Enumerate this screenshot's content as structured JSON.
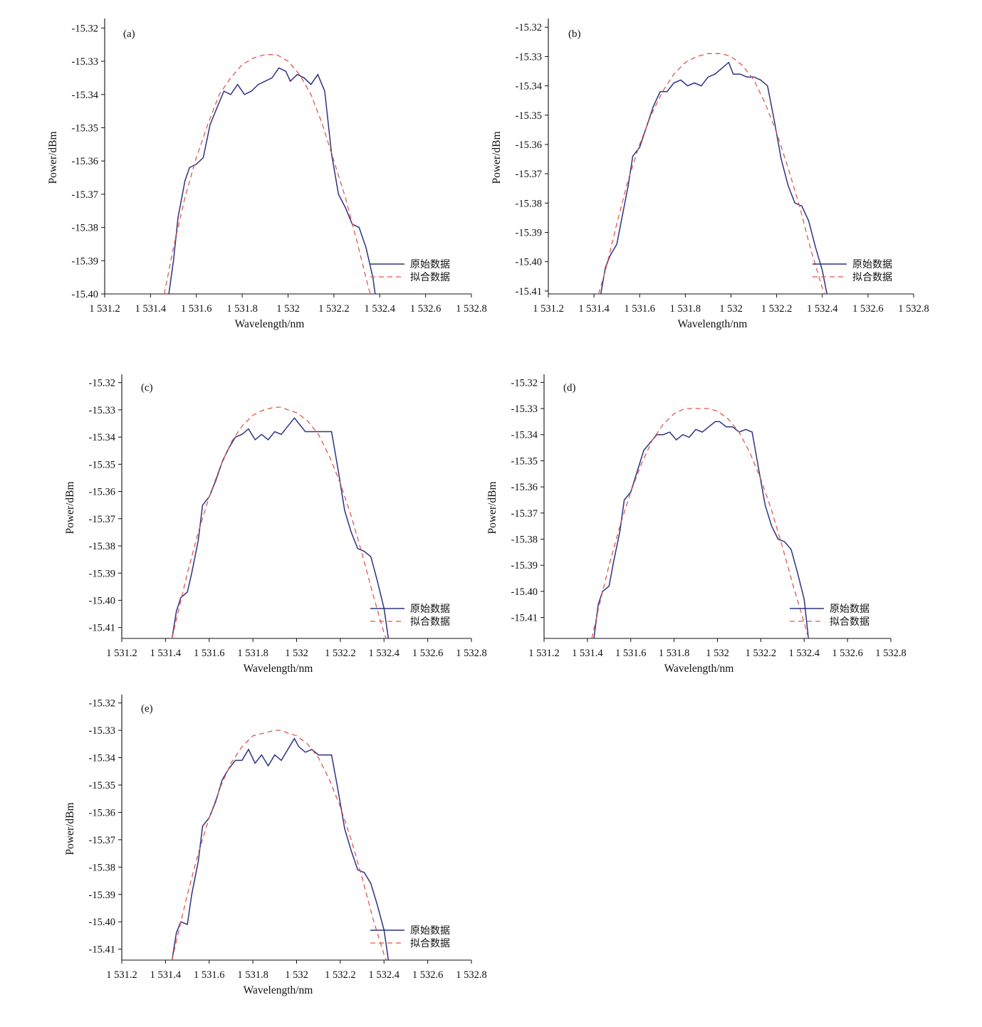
{
  "colors": {
    "raw": "#2d3380",
    "fit": "#e0584e",
    "axis": "#111111"
  },
  "chart_data": [
    {
      "type": "line",
      "panel_label": "(a)",
      "xlabel": "Wavelength/nm",
      "ylabel": "Power/dBm",
      "xlim": [
        1531.2,
        1532.8
      ],
      "ylim": [
        -15.4,
        -15.318
      ],
      "x_ticks": [
        1531.2,
        1531.4,
        1531.6,
        1531.8,
        1532.0,
        1532.2,
        1532.4,
        1532.6,
        1532.8
      ],
      "x_tick_labels": [
        "1 531.2",
        "1 531.4",
        "1 531.6",
        "1 531.8",
        "1 532",
        "1 532.2",
        "1 532.4",
        "1 532.6",
        "1 532.8"
      ],
      "y_ticks": [
        -15.32,
        -15.33,
        -15.34,
        -15.35,
        -15.36,
        -15.37,
        -15.38,
        -15.39,
        -15.4
      ],
      "y_tick_labels": [
        "-15.32",
        "-15.33",
        "-15.34",
        "-15.35",
        "-15.36",
        "-15.37",
        "-15.38",
        "-15.39",
        "-15.40"
      ],
      "legend": [
        "原始数据",
        "拟合数据"
      ],
      "legend_position": "right",
      "series": [
        {
          "name": "原始数据",
          "style": "solid",
          "x": [
            1531.48,
            1531.5,
            1531.52,
            1531.55,
            1531.57,
            1531.6,
            1531.63,
            1531.66,
            1531.69,
            1531.72,
            1531.75,
            1531.78,
            1531.81,
            1531.84,
            1531.87,
            1531.9,
            1531.93,
            1531.96,
            1531.99,
            1532.01,
            1532.04,
            1532.07,
            1532.1,
            1532.13,
            1532.16,
            1532.19,
            1532.22,
            1532.25,
            1532.28,
            1532.31,
            1532.34,
            1532.37,
            1532.38
          ],
          "y": [
            -15.4,
            -15.39,
            -15.377,
            -15.366,
            -15.362,
            -15.361,
            -15.359,
            -15.349,
            -15.344,
            -15.339,
            -15.34,
            -15.337,
            -15.34,
            -15.339,
            -15.337,
            -15.336,
            -15.335,
            -15.332,
            -15.333,
            -15.336,
            -15.334,
            -15.335,
            -15.337,
            -15.334,
            -15.339,
            -15.358,
            -15.37,
            -15.374,
            -15.379,
            -15.38,
            -15.386,
            -15.395,
            -15.4
          ]
        },
        {
          "name": "拟合数据",
          "style": "dashed",
          "x": [
            1531.46,
            1531.5,
            1531.55,
            1531.6,
            1531.65,
            1531.7,
            1531.75,
            1531.8,
            1531.85,
            1531.9,
            1531.93,
            1531.95,
            1532.0,
            1532.05,
            1532.1,
            1532.15,
            1532.2,
            1532.25,
            1532.3,
            1532.35,
            1532.36
          ],
          "y": [
            -15.4,
            -15.386,
            -15.371,
            -15.359,
            -15.349,
            -15.34,
            -15.335,
            -15.331,
            -15.329,
            -15.328,
            -15.328,
            -15.328,
            -15.33,
            -15.334,
            -15.34,
            -15.349,
            -15.36,
            -15.371,
            -15.384,
            -15.398,
            -15.4
          ]
        }
      ]
    },
    {
      "type": "line",
      "panel_label": "(b)",
      "xlabel": "Wavelength/nm",
      "ylabel": "Power/dBm",
      "xlim": [
        1531.2,
        1532.8
      ],
      "ylim": [
        -15.411,
        -15.318
      ],
      "x_ticks": [
        1531.2,
        1531.4,
        1531.6,
        1531.8,
        1532.0,
        1532.2,
        1532.4,
        1532.6,
        1532.8
      ],
      "x_tick_labels": [
        "1 531.2",
        "1 531.4",
        "1 531.6",
        "1 531.8",
        "1 532",
        "1 532.2",
        "1 532.4",
        "1 532.6",
        "1 532.8"
      ],
      "y_ticks": [
        -15.32,
        -15.33,
        -15.34,
        -15.35,
        -15.36,
        -15.37,
        -15.38,
        -15.39,
        -15.4,
        -15.41
      ],
      "y_tick_labels": [
        "-15.32",
        "-15.33",
        "-15.34",
        "-15.35",
        "-15.36",
        "-15.37",
        "-15.38",
        "-15.39",
        "-15.40",
        "-15.41"
      ],
      "legend": [
        "原始数据",
        "拟合数据"
      ],
      "legend_position": "right",
      "series": [
        {
          "name": "原始数据",
          "style": "solid",
          "x": [
            1531.43,
            1531.45,
            1531.47,
            1531.5,
            1531.52,
            1531.55,
            1531.57,
            1531.6,
            1531.63,
            1531.66,
            1531.69,
            1531.72,
            1531.75,
            1531.78,
            1531.81,
            1531.84,
            1531.87,
            1531.9,
            1531.93,
            1531.96,
            1531.99,
            1532.01,
            1532.04,
            1532.07,
            1532.1,
            1532.13,
            1532.16,
            1532.19,
            1532.22,
            1532.25,
            1532.28,
            1532.31,
            1532.34,
            1532.37,
            1532.4,
            1532.42
          ],
          "y": [
            -15.411,
            -15.402,
            -15.398,
            -15.394,
            -15.386,
            -15.374,
            -15.364,
            -15.361,
            -15.354,
            -15.347,
            -15.342,
            -15.342,
            -15.339,
            -15.338,
            -15.34,
            -15.339,
            -15.34,
            -15.337,
            -15.336,
            -15.334,
            -15.332,
            -15.336,
            -15.336,
            -15.337,
            -15.337,
            -15.338,
            -15.34,
            -15.352,
            -15.365,
            -15.374,
            -15.38,
            -15.381,
            -15.386,
            -15.395,
            -15.403,
            -15.411
          ]
        },
        {
          "name": "拟合数据",
          "style": "dashed",
          "x": [
            1531.42,
            1531.45,
            1531.5,
            1531.55,
            1531.6,
            1531.65,
            1531.7,
            1531.75,
            1531.8,
            1531.85,
            1531.9,
            1531.93,
            1531.96,
            1532.0,
            1532.05,
            1532.1,
            1532.15,
            1532.2,
            1532.25,
            1532.3,
            1532.35,
            1532.4,
            1532.41
          ],
          "y": [
            -15.411,
            -15.403,
            -15.387,
            -15.372,
            -15.36,
            -15.35,
            -15.342,
            -15.336,
            -15.332,
            -15.33,
            -15.329,
            -15.329,
            -15.329,
            -15.33,
            -15.333,
            -15.338,
            -15.346,
            -15.356,
            -15.368,
            -15.381,
            -15.396,
            -15.409,
            -15.411
          ]
        }
      ]
    },
    {
      "type": "line",
      "panel_label": "(c)",
      "xlabel": "Wavelength/nm",
      "ylabel": "Power/dBm",
      "xlim": [
        1531.2,
        1532.8
      ],
      "ylim": [
        -15.414,
        -15.318
      ],
      "x_ticks": [
        1531.2,
        1531.4,
        1531.6,
        1531.8,
        1532.0,
        1532.2,
        1532.4,
        1532.6,
        1532.8
      ],
      "x_tick_labels": [
        "1 531.2",
        "1 531.4",
        "1 531.6",
        "1 531.8",
        "1 532",
        "1 532.2",
        "1 532.4",
        "1 532.6",
        "1 532.8"
      ],
      "y_ticks": [
        -15.32,
        -15.33,
        -15.34,
        -15.35,
        -15.36,
        -15.37,
        -15.38,
        -15.39,
        -15.4,
        -15.41
      ],
      "y_tick_labels": [
        "-15.32",
        "-15.33",
        "-15.34",
        "-15.35",
        "-15.36",
        "-15.37",
        "-15.38",
        "-15.39",
        "-15.40",
        "-15.41"
      ],
      "legend": [
        "原始数据",
        "拟合数据"
      ],
      "legend_position": "right",
      "series": [
        {
          "name": "原始数据",
          "style": "solid",
          "x": [
            1531.43,
            1531.45,
            1531.47,
            1531.5,
            1531.52,
            1531.55,
            1531.57,
            1531.6,
            1531.63,
            1531.66,
            1531.69,
            1531.72,
            1531.75,
            1531.78,
            1531.81,
            1531.84,
            1531.87,
            1531.9,
            1531.93,
            1531.96,
            1531.99,
            1532.01,
            1532.04,
            1532.07,
            1532.1,
            1532.13,
            1532.16,
            1532.19,
            1532.22,
            1532.25,
            1532.28,
            1532.31,
            1532.34,
            1532.37,
            1532.4,
            1532.42
          ],
          "y": [
            -15.414,
            -15.404,
            -15.399,
            -15.397,
            -15.39,
            -15.378,
            -15.365,
            -15.362,
            -15.356,
            -15.349,
            -15.344,
            -15.34,
            -15.339,
            -15.337,
            -15.341,
            -15.339,
            -15.341,
            -15.338,
            -15.339,
            -15.336,
            -15.333,
            -15.335,
            -15.338,
            -15.338,
            -15.338,
            -15.338,
            -15.338,
            -15.352,
            -15.367,
            -15.375,
            -15.381,
            -15.382,
            -15.384,
            -15.393,
            -15.403,
            -15.414
          ]
        },
        {
          "name": "拟合数据",
          "style": "dashed",
          "x": [
            1531.43,
            1531.45,
            1531.5,
            1531.55,
            1531.6,
            1531.65,
            1531.7,
            1531.75,
            1531.8,
            1531.85,
            1531.9,
            1531.93,
            1531.96,
            1532.0,
            1532.05,
            1532.1,
            1532.15,
            1532.2,
            1532.25,
            1532.3,
            1532.35,
            1532.4,
            1532.41
          ],
          "y": [
            -15.414,
            -15.407,
            -15.39,
            -15.375,
            -15.362,
            -15.351,
            -15.342,
            -15.336,
            -15.332,
            -15.33,
            -15.329,
            -15.329,
            -15.33,
            -15.331,
            -15.334,
            -15.339,
            -15.347,
            -15.357,
            -15.369,
            -15.383,
            -15.398,
            -15.412,
            -15.414
          ]
        }
      ]
    },
    {
      "type": "line",
      "panel_label": "(d)",
      "xlabel": "Wavelength/nm",
      "ylabel": "Power/dBm",
      "xlim": [
        1531.2,
        1532.8
      ],
      "ylim": [
        -15.418,
        -15.318
      ],
      "x_ticks": [
        1531.2,
        1531.4,
        1531.6,
        1531.8,
        1532.0,
        1532.2,
        1532.4,
        1532.6,
        1532.8
      ],
      "x_tick_labels": [
        "1 531.2",
        "1 531.4",
        "1 531.6",
        "1 531.8",
        "1 532",
        "1 532.2",
        "1 532.4",
        "1 532.6",
        "1 532.8"
      ],
      "y_ticks": [
        -15.32,
        -15.33,
        -15.34,
        -15.35,
        -15.36,
        -15.37,
        -15.38,
        -15.39,
        -15.4,
        -15.41
      ],
      "y_tick_labels": [
        "-15.32",
        "-15.33",
        "-15.34",
        "-15.35",
        "-15.36",
        "-15.37",
        "-15.38",
        "-15.39",
        "-15.40",
        "-15.41"
      ],
      "legend": [
        "原始数据",
        "拟合数据"
      ],
      "legend_position": "right",
      "series": [
        {
          "name": "原始数据",
          "style": "solid",
          "x": [
            1531.43,
            1531.45,
            1531.47,
            1531.5,
            1531.52,
            1531.55,
            1531.57,
            1531.6,
            1531.63,
            1531.66,
            1531.69,
            1531.72,
            1531.75,
            1531.78,
            1531.81,
            1531.84,
            1531.87,
            1531.9,
            1531.93,
            1531.96,
            1531.99,
            1532.01,
            1532.04,
            1532.07,
            1532.1,
            1532.13,
            1532.16,
            1532.19,
            1532.22,
            1532.25,
            1532.28,
            1532.31,
            1532.34,
            1532.37,
            1532.4,
            1532.42
          ],
          "y": [
            -15.418,
            -15.405,
            -15.4,
            -15.398,
            -15.389,
            -15.377,
            -15.365,
            -15.362,
            -15.354,
            -15.346,
            -15.343,
            -15.34,
            -15.34,
            -15.339,
            -15.342,
            -15.34,
            -15.341,
            -15.338,
            -15.339,
            -15.337,
            -15.335,
            -15.335,
            -15.337,
            -15.337,
            -15.339,
            -15.338,
            -15.339,
            -15.353,
            -15.367,
            -15.375,
            -15.38,
            -15.381,
            -15.384,
            -15.393,
            -15.403,
            -15.418
          ]
        },
        {
          "name": "拟合数据",
          "style": "dashed",
          "x": [
            1531.42,
            1531.45,
            1531.5,
            1531.55,
            1531.6,
            1531.65,
            1531.7,
            1531.75,
            1531.8,
            1531.85,
            1531.9,
            1531.93,
            1531.96,
            1532.0,
            1532.05,
            1532.1,
            1532.15,
            1532.2,
            1532.25,
            1532.3,
            1532.35,
            1532.4,
            1532.42
          ],
          "y": [
            -15.418,
            -15.407,
            -15.39,
            -15.375,
            -15.362,
            -15.351,
            -15.342,
            -15.336,
            -15.332,
            -15.33,
            -15.33,
            -15.33,
            -15.33,
            -15.331,
            -15.334,
            -15.339,
            -15.347,
            -15.357,
            -15.369,
            -15.383,
            -15.398,
            -15.412,
            -15.418
          ]
        }
      ]
    },
    {
      "type": "line",
      "panel_label": "(e)",
      "xlabel": "Wavelength/nm",
      "ylabel": "Power/dBm",
      "xlim": [
        1531.2,
        1532.8
      ],
      "ylim": [
        -15.414,
        -15.318
      ],
      "x_ticks": [
        1531.2,
        1531.4,
        1531.6,
        1531.8,
        1532.0,
        1532.2,
        1532.4,
        1532.6,
        1532.8
      ],
      "x_tick_labels": [
        "1 531.2",
        "1 531.4",
        "1 531.6",
        "1 531.8",
        "1 532",
        "1 532.2",
        "1 532.4",
        "1 532.6",
        "1 532.8"
      ],
      "y_ticks": [
        -15.32,
        -15.33,
        -15.34,
        -15.35,
        -15.36,
        -15.37,
        -15.38,
        -15.39,
        -15.4,
        -15.41
      ],
      "y_tick_labels": [
        "-15.32",
        "-15.33",
        "-15.34",
        "-15.35",
        "-15.36",
        "-15.37",
        "-15.38",
        "-15.39",
        "-15.40",
        "-15.41"
      ],
      "legend": [
        "原始数据",
        "拟合数据"
      ],
      "legend_position": "right",
      "series": [
        {
          "name": "原始数据",
          "style": "solid",
          "x": [
            1531.43,
            1531.45,
            1531.47,
            1531.5,
            1531.52,
            1531.55,
            1531.57,
            1531.6,
            1531.63,
            1531.66,
            1531.69,
            1531.72,
            1531.75,
            1531.78,
            1531.81,
            1531.84,
            1531.87,
            1531.9,
            1531.93,
            1531.96,
            1531.99,
            1532.01,
            1532.04,
            1532.07,
            1532.1,
            1532.13,
            1532.16,
            1532.19,
            1532.22,
            1532.25,
            1532.28,
            1532.31,
            1532.34,
            1532.37,
            1532.4,
            1532.42
          ],
          "y": [
            -15.414,
            -15.404,
            -15.4,
            -15.401,
            -15.39,
            -15.378,
            -15.365,
            -15.362,
            -15.356,
            -15.348,
            -15.344,
            -15.341,
            -15.341,
            -15.337,
            -15.342,
            -15.339,
            -15.343,
            -15.339,
            -15.341,
            -15.337,
            -15.333,
            -15.336,
            -15.338,
            -15.337,
            -15.339,
            -15.339,
            -15.339,
            -15.352,
            -15.366,
            -15.374,
            -15.381,
            -15.382,
            -15.386,
            -15.394,
            -15.403,
            -15.414
          ]
        },
        {
          "name": "拟合数据",
          "style": "dashed",
          "x": [
            1531.43,
            1531.45,
            1531.5,
            1531.55,
            1531.6,
            1531.65,
            1531.7,
            1531.75,
            1531.8,
            1531.85,
            1531.9,
            1531.93,
            1531.96,
            1532.0,
            1532.05,
            1532.1,
            1532.15,
            1532.2,
            1532.25,
            1532.3,
            1532.35,
            1532.4,
            1532.41
          ],
          "y": [
            -15.414,
            -15.407,
            -15.39,
            -15.375,
            -15.362,
            -15.351,
            -15.342,
            -15.336,
            -15.332,
            -15.331,
            -15.33,
            -15.33,
            -15.331,
            -15.332,
            -15.335,
            -15.34,
            -15.348,
            -15.358,
            -15.37,
            -15.384,
            -15.399,
            -15.412,
            -15.414
          ]
        }
      ]
    }
  ]
}
